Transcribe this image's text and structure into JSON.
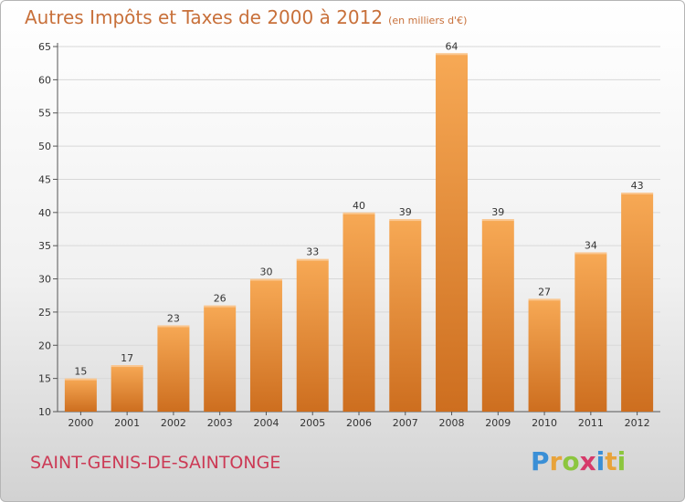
{
  "title": "Autres Impôts et Taxes de 2000 à 2012",
  "unit": "(en milliers d'€)",
  "commune": "SAINT-GENIS-DE-SAINTONGE",
  "logo": {
    "letters": [
      {
        "char": "P",
        "color": "#3a8fd6"
      },
      {
        "char": "r",
        "color": "#e8a33a"
      },
      {
        "char": "o",
        "color": "#8cc63e"
      },
      {
        "char": "x",
        "color": "#d63a6a"
      },
      {
        "char": "i",
        "color": "#3a8fd6"
      },
      {
        "char": "t",
        "color": "#e8a33a"
      },
      {
        "char": "i",
        "color": "#8cc63e"
      }
    ]
  },
  "colors": {
    "bar_light": "#f7a955",
    "bar_dark": "#cd6e1f",
    "title": "#c8703a",
    "commune": "#cc3a55"
  },
  "chart_data": {
    "type": "bar",
    "title": "Autres Impôts et Taxes de 2000 à 2012",
    "subtitle": "(en milliers d'€)",
    "categories": [
      "2000",
      "2001",
      "2002",
      "2003",
      "2004",
      "2005",
      "2006",
      "2007",
      "2008",
      "2009",
      "2010",
      "2011",
      "2012"
    ],
    "values": [
      15,
      17,
      23,
      26,
      30,
      33,
      40,
      39,
      64,
      39,
      27,
      34,
      43
    ],
    "ylim": [
      10,
      65
    ],
    "yticks": [
      10,
      15,
      20,
      25,
      30,
      35,
      40,
      45,
      50,
      55,
      60,
      65
    ],
    "grid": true,
    "legend": "none"
  }
}
